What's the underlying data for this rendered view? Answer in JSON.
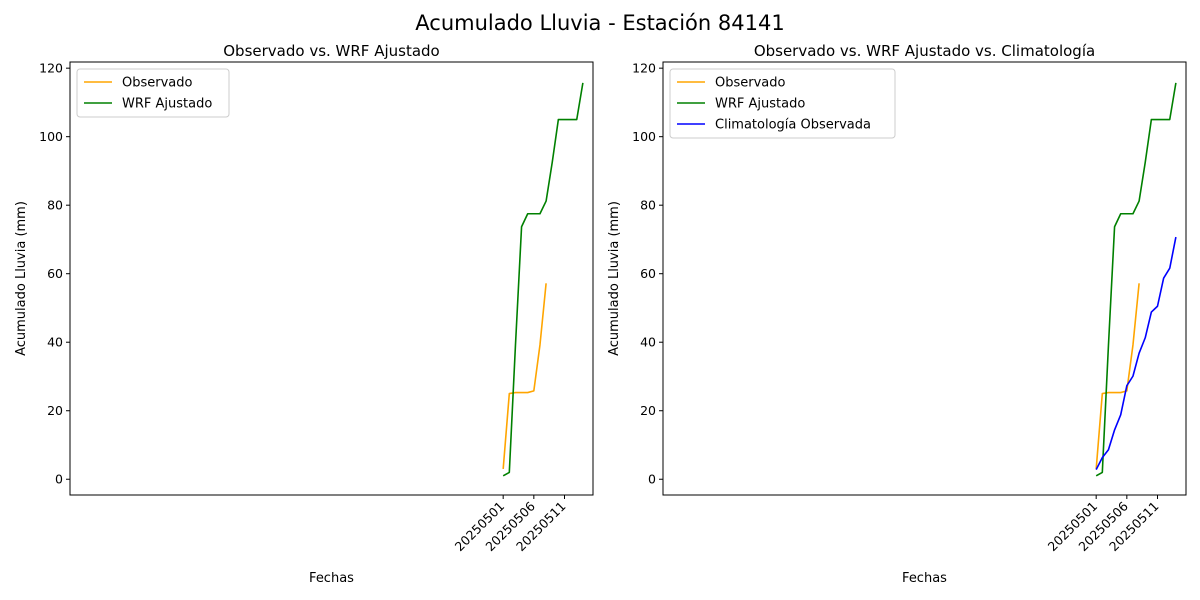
{
  "figure_title": "Acumulado Lluvia - Estación 84141",
  "colors": {
    "observado": "#ffa500",
    "wrf": "#008000",
    "climatologia": "#0000ff"
  },
  "chart_data": [
    {
      "type": "line",
      "title": "Observado vs. WRF Ajustado",
      "xlabel": "Fechas",
      "ylabel": "Acumulado Lluvia (mm)",
      "x_ticks": [
        "20250501",
        "20250506",
        "20250511"
      ],
      "y_ticks": [
        0,
        20,
        40,
        60,
        80,
        100,
        120
      ],
      "xlim": [
        20250430.35,
        20250515.65
      ],
      "ylim": [
        -4.6,
        121.8
      ],
      "legend_position": "upper-left",
      "series": [
        {
          "name": "Observado",
          "color": "#ffa500",
          "x": [
            "20250501",
            "20250502",
            "20250503",
            "20250504",
            "20250505",
            "20250506",
            "20250507",
            "20250508"
          ],
          "y": [
            3.0,
            25.0,
            25.3,
            25.3,
            25.3,
            25.8,
            39.2,
            57.2
          ]
        },
        {
          "name": "WRF Ajustado",
          "color": "#008000",
          "x": [
            "20250501",
            "20250502",
            "20250503",
            "20250504",
            "20250505",
            "20250506",
            "20250507",
            "20250508",
            "20250509",
            "20250510",
            "20250511",
            "20250512",
            "20250513",
            "20250514"
          ],
          "y": [
            1.0,
            2.0,
            39.0,
            73.7,
            77.5,
            77.5,
            77.5,
            81.2,
            92.5,
            105.0,
            105.0,
            105.0,
            105.0,
            115.7
          ]
        }
      ]
    },
    {
      "type": "line",
      "title": "Observado vs. WRF Ajustado vs. Climatología",
      "xlabel": "Fechas",
      "ylabel": "Acumulado Lluvia (mm)",
      "x_ticks": [
        "20250501",
        "20250506",
        "20250511"
      ],
      "y_ticks": [
        0,
        20,
        40,
        60,
        80,
        100,
        120
      ],
      "xlim": [
        20250430.35,
        20250515.65
      ],
      "ylim": [
        -4.6,
        121.8
      ],
      "legend_position": "upper-left",
      "series": [
        {
          "name": "Observado",
          "color": "#ffa500",
          "x": [
            "20250501",
            "20250502",
            "20250503",
            "20250504",
            "20250505",
            "20250506",
            "20250507",
            "20250508"
          ],
          "y": [
            3.0,
            25.0,
            25.3,
            25.3,
            25.3,
            25.8,
            39.2,
            57.2
          ]
        },
        {
          "name": "WRF Ajustado",
          "color": "#008000",
          "x": [
            "20250501",
            "20250502",
            "20250503",
            "20250504",
            "20250505",
            "20250506",
            "20250507",
            "20250508",
            "20250509",
            "20250510",
            "20250511",
            "20250512",
            "20250513",
            "20250514"
          ],
          "y": [
            1.0,
            2.0,
            39.0,
            73.7,
            77.5,
            77.5,
            77.5,
            81.2,
            92.5,
            105.0,
            105.0,
            105.0,
            105.0,
            115.7
          ]
        },
        {
          "name": "Climatología Observada",
          "color": "#0000ff",
          "x": [
            "20250501",
            "20250502",
            "20250503",
            "20250504",
            "20250505",
            "20250506",
            "20250507",
            "20250508",
            "20250509",
            "20250510",
            "20250511",
            "20250512",
            "20250513",
            "20250514"
          ],
          "y": [
            2.8,
            6.3,
            8.6,
            14.4,
            18.8,
            27.3,
            30.1,
            36.8,
            41.3,
            48.8,
            50.5,
            58.7,
            61.6,
            70.7
          ]
        }
      ]
    }
  ]
}
